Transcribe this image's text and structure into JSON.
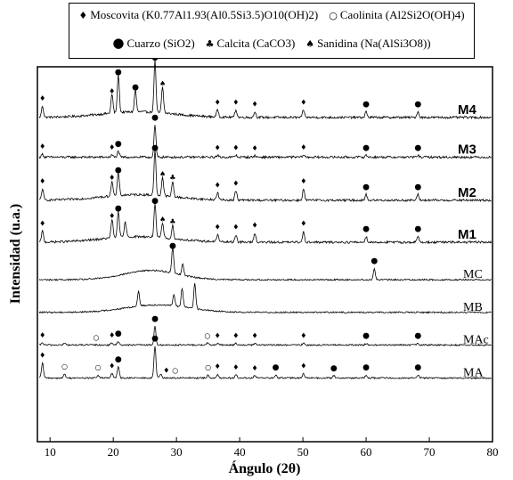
{
  "legend": {
    "row1": [
      {
        "symbol": "♦",
        "text": "Moscovita (K0.77Al1.93(Al0.5Si3.5)O10(OH)2)"
      },
      {
        "symbol": "○",
        "text": "Caolinita (Al2Si2O(OH)4)"
      }
    ],
    "row2": [
      {
        "symbol": "●",
        "text": "Cuarzo (SiO2)"
      },
      {
        "symbol": "♣",
        "text": "Calcita (CaCO3)"
      },
      {
        "symbol": "♠",
        "text": "Sanidina (Na(AlSi3O8))"
      }
    ]
  },
  "chart_data": {
    "type": "line",
    "xlabel": "Ángulo (2θ)",
    "ylabel": "Intensidad (u.a.)",
    "xlim": [
      8,
      80
    ],
    "xticks": [
      10,
      20,
      30,
      40,
      50,
      60,
      70,
      80
    ],
    "yticks_shown": false,
    "grid": false,
    "legend_position": "top",
    "series": [
      {
        "name": "M4",
        "bold_label": true,
        "baseline": 0.865,
        "peaks": [
          {
            "x": 8.8,
            "h": 0.03
          },
          {
            "x": 19.8,
            "h": 0.05
          },
          {
            "x": 20.8,
            "h": 0.1
          },
          {
            "x": 23.5,
            "h": 0.06
          },
          {
            "x": 26.6,
            "h": 0.14
          },
          {
            "x": 27.8,
            "h": 0.07
          },
          {
            "x": 36.5,
            "h": 0.02
          },
          {
            "x": 39.4,
            "h": 0.02
          },
          {
            "x": 42.4,
            "h": 0.015
          },
          {
            "x": 50.1,
            "h": 0.02
          },
          {
            "x": 60.0,
            "h": 0.015
          },
          {
            "x": 68.2,
            "h": 0.015
          }
        ],
        "markers": [
          {
            "x": 8.8,
            "s": "♦"
          },
          {
            "x": 19.8,
            "s": "♦"
          },
          {
            "x": 20.8,
            "s": "●"
          },
          {
            "x": 23.5,
            "s": "●"
          },
          {
            "x": 26.6,
            "s": "●"
          },
          {
            "x": 27.8,
            "s": "♠"
          },
          {
            "x": 36.5,
            "s": "♦"
          },
          {
            "x": 39.4,
            "s": "♦"
          },
          {
            "x": 42.4,
            "s": "♦"
          },
          {
            "x": 50.1,
            "s": "♦"
          },
          {
            "x": 60.0,
            "s": "●"
          },
          {
            "x": 68.2,
            "s": "●"
          }
        ]
      },
      {
        "name": "M3",
        "bold_label": true,
        "baseline": 0.759,
        "peaks": [
          {
            "x": 8.8,
            "h": 0.008
          },
          {
            "x": 19.8,
            "h": 0.006
          },
          {
            "x": 20.8,
            "h": 0.015
          },
          {
            "x": 26.6,
            "h": 0.085
          },
          {
            "x": 36.5,
            "h": 0.005
          },
          {
            "x": 39.4,
            "h": 0.005
          },
          {
            "x": 42.4,
            "h": 0.004
          },
          {
            "x": 50.1,
            "h": 0.006
          },
          {
            "x": 60.0,
            "h": 0.005
          },
          {
            "x": 68.2,
            "h": 0.005
          }
        ],
        "markers": [
          {
            "x": 8.8,
            "s": "♦"
          },
          {
            "x": 19.8,
            "s": "♦"
          },
          {
            "x": 20.8,
            "s": "●"
          },
          {
            "x": 26.6,
            "s": "●"
          },
          {
            "x": 36.5,
            "s": "♦"
          },
          {
            "x": 39.4,
            "s": "♦"
          },
          {
            "x": 42.4,
            "s": "♦"
          },
          {
            "x": 50.1,
            "s": "♦"
          },
          {
            "x": 60.0,
            "s": "●"
          },
          {
            "x": 68.2,
            "s": "●"
          }
        ]
      },
      {
        "name": "M2",
        "bold_label": true,
        "baseline": 0.644,
        "peaks": [
          {
            "x": 8.8,
            "h": 0.03
          },
          {
            "x": 19.8,
            "h": 0.04
          },
          {
            "x": 20.8,
            "h": 0.06
          },
          {
            "x": 26.6,
            "h": 0.12
          },
          {
            "x": 27.8,
            "h": 0.05
          },
          {
            "x": 29.4,
            "h": 0.04
          },
          {
            "x": 36.5,
            "h": 0.02
          },
          {
            "x": 39.4,
            "h": 0.025
          },
          {
            "x": 50.1,
            "h": 0.03
          },
          {
            "x": 60.0,
            "h": 0.015
          },
          {
            "x": 68.2,
            "h": 0.015
          }
        ],
        "markers": [
          {
            "x": 8.8,
            "s": "♦"
          },
          {
            "x": 19.8,
            "s": "♦"
          },
          {
            "x": 20.8,
            "s": "●"
          },
          {
            "x": 26.6,
            "s": "●"
          },
          {
            "x": 27.8,
            "s": "♠"
          },
          {
            "x": 29.4,
            "s": "♣"
          },
          {
            "x": 36.5,
            "s": "♦"
          },
          {
            "x": 39.4,
            "s": "♦"
          },
          {
            "x": 50.1,
            "s": "♦"
          },
          {
            "x": 60.0,
            "s": "●"
          },
          {
            "x": 68.2,
            "s": "●"
          }
        ]
      },
      {
        "name": "M1",
        "bold_label": true,
        "baseline": 0.532,
        "peaks": [
          {
            "x": 8.8,
            "h": 0.03
          },
          {
            "x": 19.8,
            "h": 0.05
          },
          {
            "x": 20.8,
            "h": 0.07
          },
          {
            "x": 21.9,
            "h": 0.04
          },
          {
            "x": 26.6,
            "h": 0.09
          },
          {
            "x": 27.8,
            "h": 0.04
          },
          {
            "x": 29.4,
            "h": 0.035
          },
          {
            "x": 36.5,
            "h": 0.02
          },
          {
            "x": 39.4,
            "h": 0.02
          },
          {
            "x": 42.4,
            "h": 0.025
          },
          {
            "x": 50.1,
            "h": 0.03
          },
          {
            "x": 60.0,
            "h": 0.015
          },
          {
            "x": 68.2,
            "h": 0.015
          }
        ],
        "markers": [
          {
            "x": 8.8,
            "s": "♦"
          },
          {
            "x": 19.8,
            "s": "♦"
          },
          {
            "x": 20.8,
            "s": "●"
          },
          {
            "x": 26.6,
            "s": "●"
          },
          {
            "x": 27.8,
            "s": "♠"
          },
          {
            "x": 29.4,
            "s": "♣"
          },
          {
            "x": 36.5,
            "s": "♦"
          },
          {
            "x": 39.4,
            "s": "♦"
          },
          {
            "x": 42.4,
            "s": "♦"
          },
          {
            "x": 50.1,
            "s": "♦"
          },
          {
            "x": 60.0,
            "s": "●"
          },
          {
            "x": 68.2,
            "s": "●"
          }
        ]
      },
      {
        "name": "MC",
        "bold_label": false,
        "baseline": 0.432,
        "peaks": [
          {
            "x": 29.4,
            "h": 0.07
          },
          {
            "x": 31.0,
            "h": 0.03
          },
          {
            "x": 61.3,
            "h": 0.03
          }
        ],
        "markers": [
          {
            "x": 29.4,
            "s": "●"
          },
          {
            "x": 61.3,
            "s": "●"
          }
        ]
      },
      {
        "name": "MB",
        "bold_label": false,
        "baseline": 0.345,
        "peaks": [
          {
            "x": 24.0,
            "h": 0.04
          },
          {
            "x": 29.6,
            "h": 0.03
          },
          {
            "x": 30.9,
            "h": 0.05
          },
          {
            "x": 32.9,
            "h": 0.07
          }
        ],
        "markers": []
      },
      {
        "name": "MAc",
        "bold_label": false,
        "baseline": 0.258,
        "peaks": [
          {
            "x": 8.8,
            "h": 0.006
          },
          {
            "x": 12.3,
            "h": 0.005
          },
          {
            "x": 19.8,
            "h": 0.006
          },
          {
            "x": 20.8,
            "h": 0.01
          },
          {
            "x": 26.6,
            "h": 0.05
          },
          {
            "x": 34.9,
            "h": 0.005
          },
          {
            "x": 36.5,
            "h": 0.005
          },
          {
            "x": 39.4,
            "h": 0.005
          },
          {
            "x": 42.4,
            "h": 0.004
          },
          {
            "x": 50.1,
            "h": 0.005
          },
          {
            "x": 60.0,
            "h": 0.004
          },
          {
            "x": 68.2,
            "h": 0.004
          }
        ],
        "markers": [
          {
            "x": 8.8,
            "s": "♦"
          },
          {
            "x": 17.3,
            "s": "○"
          },
          {
            "x": 19.8,
            "s": "♦"
          },
          {
            "x": 20.8,
            "s": "●"
          },
          {
            "x": 26.6,
            "s": "●"
          },
          {
            "x": 34.9,
            "s": "○"
          },
          {
            "x": 36.5,
            "s": "♦"
          },
          {
            "x": 39.4,
            "s": "♦"
          },
          {
            "x": 42.4,
            "s": "♦"
          },
          {
            "x": 50.1,
            "s": "♦"
          },
          {
            "x": 60.0,
            "s": "●"
          },
          {
            "x": 68.2,
            "s": "●"
          }
        ]
      },
      {
        "name": "MA",
        "bold_label": false,
        "baseline": 0.17,
        "peaks": [
          {
            "x": 8.8,
            "h": 0.04
          },
          {
            "x": 12.3,
            "h": 0.01
          },
          {
            "x": 17.6,
            "h": 0.008
          },
          {
            "x": 19.8,
            "h": 0.012
          },
          {
            "x": 20.8,
            "h": 0.03
          },
          {
            "x": 26.6,
            "h": 0.085
          },
          {
            "x": 27.5,
            "h": 0.01
          },
          {
            "x": 35.0,
            "h": 0.008
          },
          {
            "x": 36.5,
            "h": 0.01
          },
          {
            "x": 39.4,
            "h": 0.008
          },
          {
            "x": 42.4,
            "h": 0.006
          },
          {
            "x": 45.7,
            "h": 0.008
          },
          {
            "x": 50.1,
            "h": 0.012
          },
          {
            "x": 54.9,
            "h": 0.006
          },
          {
            "x": 60.0,
            "h": 0.008
          },
          {
            "x": 68.2,
            "h": 0.008
          }
        ],
        "markers": [
          {
            "x": 8.8,
            "s": "♦"
          },
          {
            "x": 12.3,
            "s": "○"
          },
          {
            "x": 17.6,
            "s": "○"
          },
          {
            "x": 19.8,
            "s": "♦"
          },
          {
            "x": 20.8,
            "s": "●"
          },
          {
            "x": 26.6,
            "s": "●"
          },
          {
            "x": 28.4,
            "s": "♦"
          },
          {
            "x": 29.8,
            "s": "○"
          },
          {
            "x": 35.0,
            "s": "○"
          },
          {
            "x": 36.5,
            "s": "♦"
          },
          {
            "x": 39.4,
            "s": "♦"
          },
          {
            "x": 42.4,
            "s": "♦"
          },
          {
            "x": 45.7,
            "s": "●"
          },
          {
            "x": 50.1,
            "s": "♦"
          },
          {
            "x": 54.9,
            "s": "●"
          },
          {
            "x": 60.0,
            "s": "●"
          },
          {
            "x": 68.2,
            "s": "●"
          }
        ]
      }
    ]
  }
}
